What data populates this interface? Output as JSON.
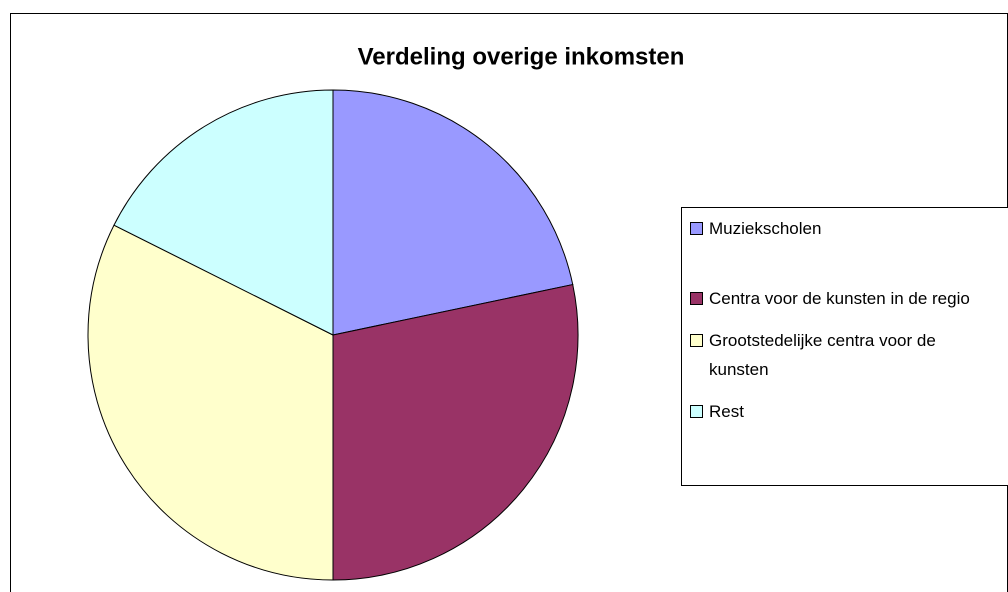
{
  "chart_data": {
    "type": "pie",
    "title": "Verdeling overige inkomsten",
    "categories": [
      "Muziekscholen",
      "Centra voor de kunsten in de regio",
      "Grootstedelijke centra voor de kunsten",
      "Rest"
    ],
    "values": [
      21.7,
      28.3,
      32.4,
      17.6
    ],
    "colors": [
      "#9999ff",
      "#993366",
      "#ffffcc",
      "#ccffff"
    ],
    "legend": "right"
  }
}
